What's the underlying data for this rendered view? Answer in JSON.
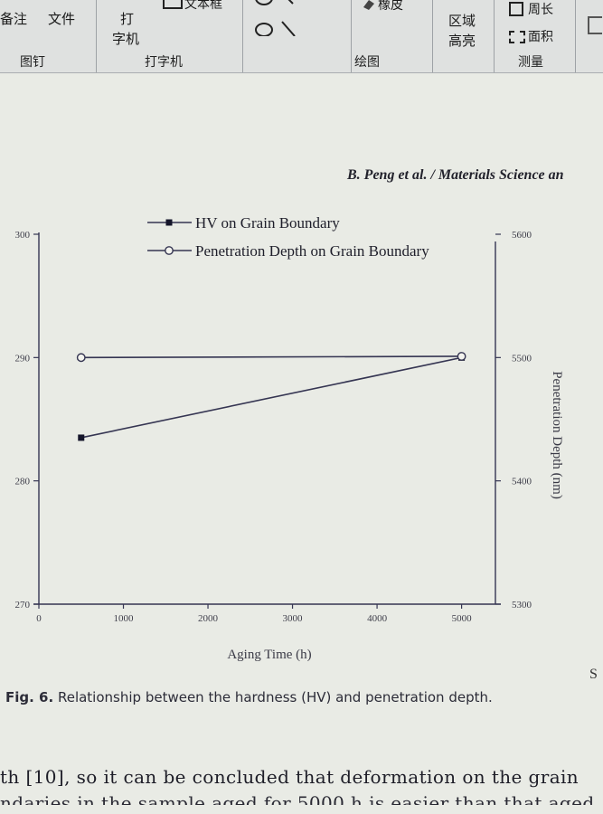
{
  "ribbon": {
    "items": {
      "annotate": "备注",
      "file": "文件",
      "typewriter_1": "打",
      "typewriter_2": "字机",
      "textbox": "文本框",
      "eraser": "橡皮",
      "area_1": "区域",
      "area_2": "高亮",
      "perimeter": "周长",
      "area_measure": "面积"
    },
    "groups": {
      "pin": "图钉",
      "typewriter": "打字机",
      "drawing": "绘图",
      "measure": "测量"
    }
  },
  "page": {
    "header": "B. Peng et al. / Materials Science an",
    "caption_label": "Fig. 6.",
    "caption_text": "Relationship between the hardness (HV) and penetration depth.",
    "body_line1": "th [10], so it can be concluded that deformation on the grain",
    "body_line2": "ndaries in the sample aged for 5000 h is easier than that aged",
    "side_glyph": "S"
  },
  "chart_data": {
    "type": "line",
    "xlabel": "Aging Time (h)",
    "ylabel_left": "",
    "ylabel_right": "Penetration Depth (nm)",
    "xlim": [
      0,
      5400
    ],
    "xticks": [
      0,
      1000,
      2000,
      3000,
      4000,
      5000
    ],
    "ylim_left": [
      270,
      300
    ],
    "yticks_left": [
      270,
      280,
      290,
      300
    ],
    "ylim_right": [
      5300,
      5600
    ],
    "yticks_right": [
      5300,
      5400,
      5500,
      5600
    ],
    "grid": false,
    "legend_position": "top-center",
    "series": [
      {
        "name": "HV on Grain Boundary",
        "axis": "left",
        "marker": "filled-square",
        "x": [
          500,
          5000
        ],
        "y": [
          283.5,
          290
        ]
      },
      {
        "name": "Penetration Depth on Grain Boundary",
        "axis": "right",
        "marker": "open-circle",
        "x": [
          500,
          5000
        ],
        "y": [
          5500,
          5501
        ]
      }
    ],
    "line_color": "#353552"
  }
}
